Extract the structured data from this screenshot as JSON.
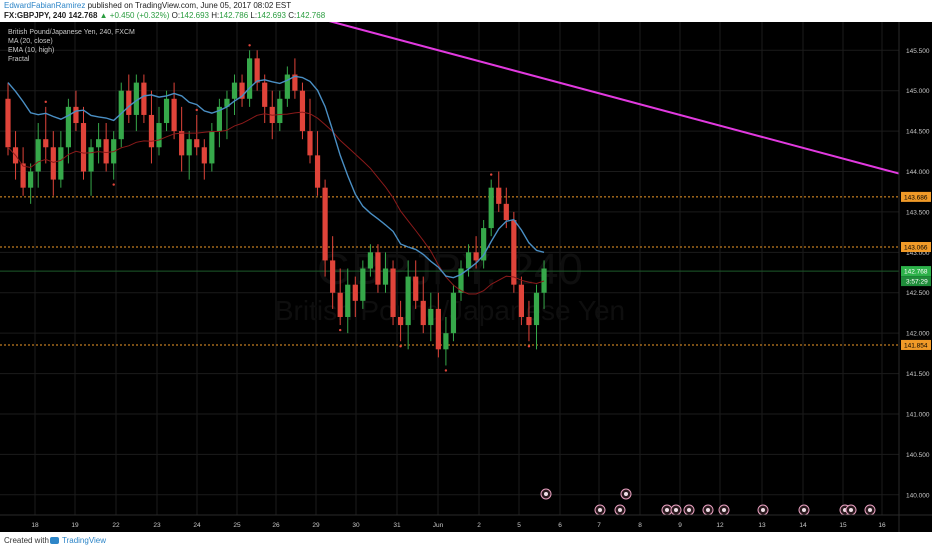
{
  "header": {
    "author": "EdwardFabianRamirez",
    "published": "published on TradingView.com, June 05, 2017 08:02 EST",
    "symbol": "FX:GBPJPY, 240",
    "last": "142.768",
    "change": "▲ +0.450 (+0.32%)",
    "o_label": "O:",
    "o": "142.693",
    "h_label": "H:",
    "h": "142.786",
    "l_label": "L:",
    "l": "142.693",
    "c_label": "C:",
    "c": "142.768"
  },
  "legend": {
    "title": "British Pound/Japanese Yen, 240, FXCM",
    "ma": "MA (20, close)",
    "ema": "EMA (10, high)",
    "fractal": "Fractal"
  },
  "watermark": {
    "symbol": "GBPJPY, 240",
    "name": "British Pound/Japanese Yen"
  },
  "footer": {
    "created": "Created with",
    "brand": "TradingView"
  },
  "colors": {
    "up": "#36a84a",
    "down": "#e0443a",
    "ema": "#4a8fc4",
    "ma": "#8b1a1a",
    "trendline": "#e23ae0",
    "level": "#f09a28",
    "price_tag": "#2db24a",
    "countdown": "#1f8c3a",
    "axis_text": "#c9c9c9",
    "grid": "#1b1b1b"
  },
  "chart_data": {
    "type": "candlestick",
    "y_axis": {
      "ticks": [
        "145.500",
        "145.000",
        "144.500",
        "144.000",
        "143.500",
        "143.000",
        "142.500",
        "142.000",
        "141.500",
        "141.000",
        "140.500",
        "140.000"
      ],
      "ylim": [
        139.75,
        145.85
      ]
    },
    "x_axis": {
      "ticks": [
        "18",
        "19",
        "22",
        "23",
        "24",
        "25",
        "26",
        "29",
        "30",
        "31",
        "Jun",
        "2",
        "5",
        "6",
        "7",
        "8",
        "9",
        "12",
        "13",
        "14",
        "15",
        "16"
      ]
    },
    "horizontal_levels": [
      {
        "value": 143.686,
        "label": "143.686",
        "style": "dotted"
      },
      {
        "value": 143.066,
        "label": "143.066",
        "style": "dotted"
      },
      {
        "value": 141.854,
        "label": "141.854",
        "style": "dotted"
      }
    ],
    "current_price": {
      "value": 142.768,
      "label": "142.768",
      "countdown": "3:57:29"
    },
    "trendline": {
      "from": {
        "bar": 37,
        "value": 146.0
      },
      "to": {
        "bar": 213,
        "value": 141.6
      }
    },
    "ohlc": [
      [
        144.9,
        145.1,
        144.2,
        144.3
      ],
      [
        144.3,
        144.5,
        143.9,
        144.1
      ],
      [
        144.1,
        144.3,
        143.7,
        143.8
      ],
      [
        143.8,
        144.1,
        143.6,
        144.0
      ],
      [
        144.0,
        144.6,
        143.8,
        144.4
      ],
      [
        144.4,
        144.8,
        144.1,
        144.3
      ],
      [
        144.3,
        144.5,
        143.7,
        143.9
      ],
      [
        143.9,
        144.5,
        143.8,
        144.3
      ],
      [
        144.3,
        144.9,
        144.1,
        144.8
      ],
      [
        144.8,
        145.0,
        144.5,
        144.6
      ],
      [
        144.6,
        144.8,
        143.9,
        144.0
      ],
      [
        144.0,
        144.4,
        143.7,
        144.3
      ],
      [
        144.3,
        144.6,
        144.1,
        144.4
      ],
      [
        144.4,
        144.6,
        144.0,
        144.1
      ],
      [
        144.1,
        144.5,
        143.9,
        144.4
      ],
      [
        144.4,
        145.1,
        144.3,
        145.0
      ],
      [
        145.0,
        145.2,
        144.6,
        144.7
      ],
      [
        144.7,
        145.2,
        144.5,
        145.1
      ],
      [
        145.1,
        145.2,
        144.6,
        144.7
      ],
      [
        144.7,
        145.0,
        144.1,
        144.3
      ],
      [
        144.3,
        144.8,
        144.2,
        144.6
      ],
      [
        144.6,
        145.0,
        144.5,
        144.9
      ],
      [
        144.9,
        145.1,
        144.4,
        144.5
      ],
      [
        144.5,
        144.8,
        144.0,
        144.2
      ],
      [
        144.2,
        144.5,
        143.9,
        144.4
      ],
      [
        144.4,
        144.7,
        144.2,
        144.3
      ],
      [
        144.3,
        144.4,
        143.9,
        144.1
      ],
      [
        144.1,
        144.6,
        144.0,
        144.5
      ],
      [
        144.5,
        144.9,
        144.3,
        144.8
      ],
      [
        144.8,
        145.0,
        144.4,
        144.9
      ],
      [
        144.9,
        145.2,
        144.7,
        145.1
      ],
      [
        145.1,
        145.2,
        144.8,
        144.9
      ],
      [
        144.9,
        145.5,
        144.8,
        145.4
      ],
      [
        145.4,
        145.5,
        145.0,
        145.1
      ],
      [
        145.1,
        145.2,
        144.6,
        144.8
      ],
      [
        144.8,
        145.0,
        144.4,
        144.6
      ],
      [
        144.6,
        145.0,
        144.5,
        144.9
      ],
      [
        144.9,
        145.3,
        144.8,
        145.2
      ],
      [
        145.2,
        145.4,
        144.9,
        145.0
      ],
      [
        145.0,
        145.1,
        144.4,
        144.5
      ],
      [
        144.5,
        144.9,
        144.1,
        144.2
      ],
      [
        144.2,
        144.5,
        143.7,
        143.8
      ],
      [
        143.8,
        143.9,
        142.7,
        142.9
      ],
      [
        142.9,
        143.2,
        142.3,
        142.5
      ],
      [
        142.5,
        142.8,
        142.1,
        142.2
      ],
      [
        142.2,
        142.8,
        142.0,
        142.6
      ],
      [
        142.6,
        142.7,
        142.2,
        142.4
      ],
      [
        142.4,
        142.9,
        142.3,
        142.8
      ],
      [
        142.8,
        143.1,
        142.7,
        143.0
      ],
      [
        143.0,
        143.1,
        142.5,
        142.6
      ],
      [
        142.6,
        143.0,
        142.5,
        142.8
      ],
      [
        142.8,
        142.9,
        142.1,
        142.2
      ],
      [
        142.2,
        142.4,
        141.9,
        142.1
      ],
      [
        142.1,
        142.9,
        141.8,
        142.7
      ],
      [
        142.7,
        142.9,
        142.3,
        142.4
      ],
      [
        142.4,
        142.7,
        142.0,
        142.1
      ],
      [
        142.1,
        142.5,
        141.9,
        142.3
      ],
      [
        142.3,
        142.5,
        141.7,
        141.8
      ],
      [
        141.8,
        142.2,
        141.6,
        142.0
      ],
      [
        142.0,
        142.6,
        141.9,
        142.5
      ],
      [
        142.5,
        142.9,
        142.4,
        142.8
      ],
      [
        142.8,
        143.1,
        142.7,
        143.0
      ],
      [
        143.0,
        143.2,
        142.8,
        142.9
      ],
      [
        142.9,
        143.4,
        142.8,
        143.3
      ],
      [
        143.3,
        143.9,
        143.2,
        143.8
      ],
      [
        143.8,
        144.0,
        143.5,
        143.6
      ],
      [
        143.6,
        143.8,
        143.3,
        143.4
      ],
      [
        143.4,
        143.5,
        142.5,
        142.6
      ],
      [
        142.6,
        142.7,
        142.1,
        142.2
      ],
      [
        142.2,
        142.4,
        141.9,
        142.1
      ],
      [
        142.1,
        142.6,
        141.8,
        142.5
      ],
      [
        142.5,
        142.9,
        142.3,
        142.8
      ]
    ]
  }
}
